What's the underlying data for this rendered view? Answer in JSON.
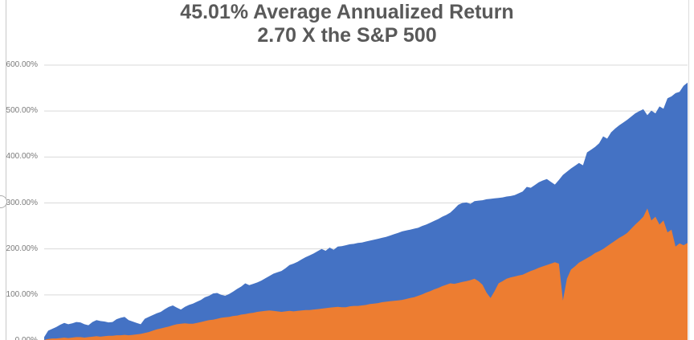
{
  "title": {
    "line1": "45.01% Average Annualized Return",
    "line2": "2.70 X the S&P 500"
  },
  "chart_data": {
    "type": "area",
    "title": "45.01% Average Annualized Return",
    "subtitle": "2.70 X the S&P 500",
    "xlabel": "",
    "ylabel": "",
    "x_axis": {
      "tick_labels_visible": false
    },
    "y_axis": {
      "min": 0,
      "max": 600,
      "tick_step": 100,
      "unit": "%",
      "tick_labels": [
        "0.00%",
        "100.00%",
        "200.00%",
        "300.00%",
        "400.00%",
        "500.00%",
        "600.00%"
      ]
    },
    "grid": true,
    "grid_color": "#d9d9d9",
    "legend": "none",
    "title_color": "#595959",
    "series": [
      {
        "name": "blue-series (portfolio, ends ~560%)",
        "color": "#4472C4",
        "unit": "percent-return",
        "values": [
          8,
          22,
          26,
          30,
          35,
          39,
          36,
          38,
          41,
          40,
          36,
          34,
          41,
          45,
          43,
          42,
          40,
          41,
          47,
          50,
          52,
          45,
          42,
          39,
          36,
          48,
          52,
          56,
          60,
          63,
          69,
          74,
          77,
          72,
          68,
          74,
          78,
          81,
          85,
          89,
          95,
          98,
          103,
          104,
          100,
          98,
          102,
          107,
          113,
          118,
          125,
          121,
          124,
          127,
          131,
          136,
          141,
          146,
          149,
          152,
          158,
          165,
          168,
          172,
          177,
          182,
          186,
          190,
          195,
          200,
          196,
          203,
          198,
          205,
          206,
          208,
          210,
          211,
          213,
          214,
          216,
          218,
          220,
          222,
          224,
          226,
          229,
          232,
          235,
          238,
          240,
          242,
          244,
          246,
          250,
          253,
          257,
          261,
          265,
          270,
          274,
          279,
          287,
          296,
          300,
          301,
          298,
          304,
          305,
          306,
          308,
          309,
          310,
          311,
          312,
          314,
          315,
          317,
          321,
          325,
          335,
          333,
          339,
          345,
          349,
          352,
          346,
          340,
          350,
          361,
          368,
          375,
          381,
          387,
          382,
          410,
          416,
          422,
          430,
          445,
          440,
          454,
          462,
          469,
          475,
          481,
          488,
          495,
          500,
          504,
          491,
          501,
          495,
          510,
          505,
          528,
          532,
          539,
          542,
          555,
          562
        ]
      },
      {
        "name": "orange-series (S&P 500, ends ~213%)",
        "color": "#ED7D31",
        "unit": "percent-return",
        "values": [
          2,
          4,
          5,
          5,
          6,
          7,
          6,
          7,
          8,
          8,
          7,
          8,
          9,
          10,
          9,
          10,
          11,
          11,
          12,
          12,
          13,
          12,
          13,
          14,
          15,
          17,
          19,
          22,
          25,
          27,
          29,
          31,
          34,
          36,
          37,
          38,
          37,
          37,
          39,
          41,
          43,
          45,
          46,
          48,
          50,
          51,
          52,
          54,
          55,
          57,
          58,
          60,
          61,
          63,
          64,
          65,
          66,
          65,
          64,
          63,
          64,
          65,
          64,
          65,
          66,
          67,
          67,
          68,
          69,
          70,
          71,
          72,
          73,
          74,
          73,
          73,
          75,
          76,
          76,
          77,
          78,
          80,
          81,
          82,
          84,
          85,
          86,
          87,
          88,
          89,
          91,
          93,
          95,
          98,
          101,
          105,
          108,
          112,
          115,
          119,
          122,
          125,
          124,
          126,
          128,
          130,
          132,
          135,
          130,
          122,
          105,
          93,
          108,
          125,
          130,
          135,
          138,
          140,
          142,
          144,
          148,
          152,
          155,
          159,
          162,
          165,
          168,
          171,
          168,
          88,
          135,
          155,
          162,
          170,
          175,
          180,
          185,
          191,
          195,
          200,
          206,
          212,
          218,
          224,
          229,
          235,
          244,
          253,
          261,
          270,
          288,
          262,
          270,
          253,
          262,
          236,
          242,
          205,
          212,
          208,
          213
        ]
      }
    ]
  },
  "frame": {
    "left_edge_color": "#c9c9c9",
    "right_edge_color": "#dcdcdc",
    "handle_name": "side-resize-handle"
  }
}
